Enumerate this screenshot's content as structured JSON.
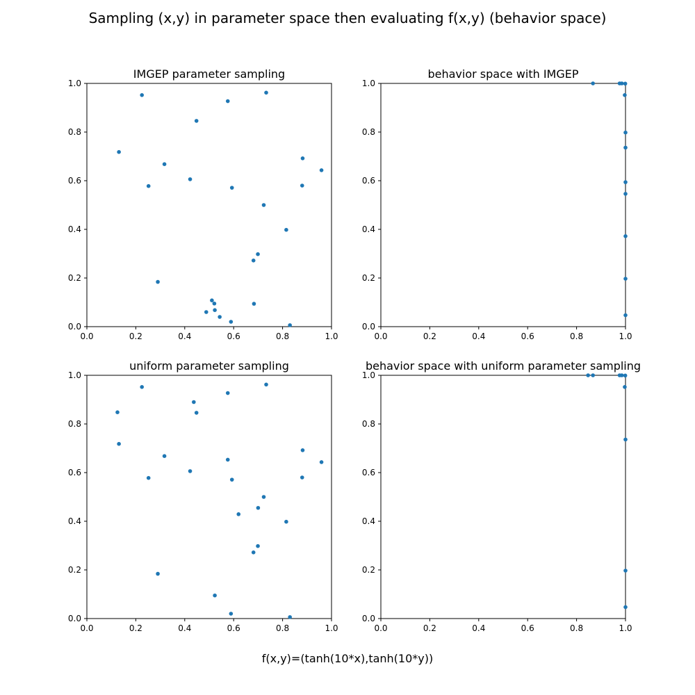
{
  "figure": {
    "title": "Sampling (x,y) in parameter space then evaluating f(x,y) (behavior space)",
    "xlabel": "f(x,y)=(tanh(10*x),tanh(10*y))"
  },
  "chart_data": [
    {
      "type": "scatter",
      "title": "IMGEP parameter sampling",
      "xlim": [
        0,
        1
      ],
      "ylim": [
        0,
        1
      ],
      "xticks": [
        "0.0",
        "0.2",
        "0.4",
        "0.6",
        "0.8",
        "1.0"
      ],
      "yticks": [
        "0.0",
        "0.2",
        "0.4",
        "0.6",
        "0.8",
        "1.0"
      ],
      "color": "#1f77b4",
      "points": [
        [
          0.225,
          0.952
        ],
        [
          0.733,
          0.962
        ],
        [
          0.576,
          0.927
        ],
        [
          0.448,
          0.846
        ],
        [
          0.131,
          0.718
        ],
        [
          0.317,
          0.668
        ],
        [
          0.882,
          0.692
        ],
        [
          0.959,
          0.643
        ],
        [
          0.252,
          0.578
        ],
        [
          0.422,
          0.606
        ],
        [
          0.593,
          0.571
        ],
        [
          0.88,
          0.58
        ],
        [
          0.723,
          0.5
        ],
        [
          0.815,
          0.398
        ],
        [
          0.699,
          0.298
        ],
        [
          0.681,
          0.272
        ],
        [
          0.29,
          0.184
        ],
        [
          0.511,
          0.108
        ],
        [
          0.521,
          0.095
        ],
        [
          0.683,
          0.094
        ],
        [
          0.523,
          0.068
        ],
        [
          0.488,
          0.06
        ],
        [
          0.543,
          0.04
        ],
        [
          0.589,
          0.02
        ],
        [
          0.83,
          0.006
        ]
      ]
    },
    {
      "type": "scatter",
      "title": "behavior space with IMGEP",
      "xlim": [
        0,
        1
      ],
      "ylim": [
        0,
        1
      ],
      "xticks": [
        "0.0",
        "0.2",
        "0.4",
        "0.6",
        "0.8",
        "1.0"
      ],
      "yticks": [
        "0.0",
        "0.2",
        "0.4",
        "0.6",
        "0.8",
        "1.0"
      ],
      "color": "#1f77b4",
      "points": [
        [
          0.867,
          1.0
        ],
        [
          0.976,
          1.0
        ],
        [
          0.985,
          1.0
        ],
        [
          0.999,
          0.999
        ],
        [
          0.997,
          0.952
        ],
        [
          1.0,
          0.798
        ],
        [
          1.0,
          0.736
        ],
        [
          1.0,
          0.594
        ],
        [
          1.0,
          0.546
        ],
        [
          1.0,
          0.372
        ],
        [
          1.0,
          0.197
        ],
        [
          1.0,
          0.047
        ]
      ]
    },
    {
      "type": "scatter",
      "title": "uniform parameter sampling",
      "xlim": [
        0,
        1
      ],
      "ylim": [
        0,
        1
      ],
      "xticks": [
        "0.0",
        "0.2",
        "0.4",
        "0.6",
        "0.8",
        "1.0"
      ],
      "yticks": [
        "0.0",
        "0.2",
        "0.4",
        "0.6",
        "0.8",
        "1.0"
      ],
      "color": "#1f77b4",
      "points": [
        [
          0.225,
          0.952
        ],
        [
          0.733,
          0.962
        ],
        [
          0.576,
          0.927
        ],
        [
          0.437,
          0.89
        ],
        [
          0.448,
          0.846
        ],
        [
          0.125,
          0.848
        ],
        [
          0.131,
          0.718
        ],
        [
          0.317,
          0.668
        ],
        [
          0.882,
          0.692
        ],
        [
          0.959,
          0.643
        ],
        [
          0.576,
          0.653
        ],
        [
          0.252,
          0.578
        ],
        [
          0.422,
          0.606
        ],
        [
          0.593,
          0.571
        ],
        [
          0.88,
          0.58
        ],
        [
          0.723,
          0.5
        ],
        [
          0.7,
          0.455
        ],
        [
          0.62,
          0.429
        ],
        [
          0.815,
          0.398
        ],
        [
          0.699,
          0.298
        ],
        [
          0.681,
          0.272
        ],
        [
          0.29,
          0.184
        ],
        [
          0.523,
          0.095
        ],
        [
          0.589,
          0.02
        ],
        [
          0.83,
          0.006
        ]
      ]
    },
    {
      "type": "scatter",
      "title": "behavior space with uniform parameter sampling",
      "xlim": [
        0,
        1
      ],
      "ylim": [
        0,
        1
      ],
      "xticks": [
        "0.0",
        "0.2",
        "0.4",
        "0.6",
        "0.8",
        "1.0"
      ],
      "yticks": [
        "0.0",
        "0.2",
        "0.4",
        "0.6",
        "0.8",
        "1.0"
      ],
      "color": "#1f77b4",
      "points": [
        [
          0.847,
          1.0
        ],
        [
          0.867,
          1.0
        ],
        [
          0.976,
          1.0
        ],
        [
          0.985,
          1.0
        ],
        [
          0.999,
          0.999
        ],
        [
          0.997,
          0.952
        ],
        [
          1.0,
          0.736
        ],
        [
          1.0,
          0.197
        ],
        [
          1.0,
          0.047
        ]
      ]
    }
  ]
}
